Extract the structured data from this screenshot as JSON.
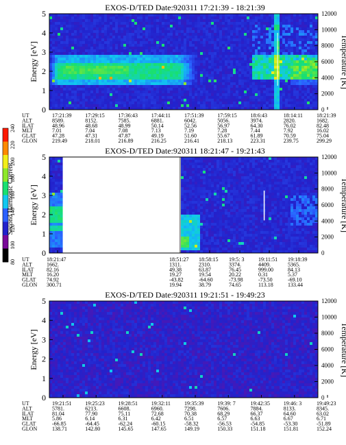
{
  "panels": [
    {
      "title": "EXOS-D/TED   Date:920311  17:21:39 - 18:21:39",
      "ylabel": "Energy [eV]",
      "y2label": "Temperature [K]",
      "yticks": [
        "0",
        "1",
        "2",
        "3",
        "4",
        "5"
      ],
      "y2ticks": [
        "0",
        "2000",
        "4000",
        "6000",
        "8000",
        "10000",
        "12000"
      ],
      "row_labels": [
        "UT",
        "ALT",
        "ILAT",
        "MLT",
        "GLAT",
        "GLON"
      ],
      "columns": [
        [
          "17:21:39",
          "8589.",
          "48.96",
          "7.01",
          "47.28",
          "219.49"
        ],
        [
          "17:29:15",
          "8152.",
          "48.68",
          "7.04",
          "47.31",
          "218.01"
        ],
        [
          "17:36:43",
          "7585.",
          "48.99",
          "7.08",
          "47.87",
          "216.89"
        ],
        [
          "17:44:11",
          "6881.",
          "50.14",
          "7.13",
          "49.19",
          "216.25"
        ],
        [
          "17:51:39",
          "6042.",
          "52.56",
          "7.19",
          "51.60",
          "216.41"
        ],
        [
          "17:59:15",
          "5056.",
          "56.97",
          "7.28",
          "55.67",
          "218.13"
        ],
        [
          "18:6:43",
          "3974.",
          "64.30",
          "7.44",
          "61.89",
          "223.31"
        ],
        [
          "18:14:11",
          "2820.",
          "76.02",
          "7.92",
          "70.59",
          "239.75"
        ],
        [
          "18:21:39",
          "1682.",
          "82.48",
          "16.02",
          "75.04",
          "299.29"
        ]
      ]
    },
    {
      "title": "EXOS-D/TED   Date:920311  18:21:47 - 19:21:43",
      "ylabel": "Energy [eV]",
      "y2label": "Temperature [K]",
      "yticks": [
        "0",
        "1",
        "2",
        "3",
        "4",
        "5"
      ],
      "y2ticks": [
        "0",
        "2000",
        "4000",
        "6000",
        "8000",
        "10000",
        "12000"
      ],
      "row_labels": [
        "UT",
        "ALT",
        "ILAT",
        "MLT",
        "GLAT",
        "GLON"
      ],
      "columns": [
        [
          "18:21:47",
          "1662.",
          "82.16",
          "16.20",
          "74.92",
          "300.71"
        ],
        [
          "18:51:27",
          "1311.",
          "49.38",
          "19.27",
          "-43.82",
          "19.94"
        ],
        [
          "18:58:15",
          "2310.",
          "63.87",
          "19.54",
          "-64.60",
          "38.79"
        ],
        [
          "19:5: 3",
          "3374.",
          "76.45",
          "20.22",
          "-73.98",
          "74.65"
        ],
        [
          "19:11:51",
          "4409.",
          "999.00",
          "0.31",
          "-73.50",
          "113.18"
        ],
        [
          "19:18:39",
          "5365.",
          "84.13",
          "5.37",
          "-69.10",
          "133.44"
        ]
      ]
    },
    {
      "title": "EXOS-D/TED   Date:920311  19:21:51 - 19:49:23",
      "ylabel": "Energy [eV]",
      "y2label": "Temperature [K]",
      "yticks": [
        "0",
        "1",
        "2",
        "3",
        "4",
        "5"
      ],
      "y2ticks": [
        "0",
        "2000",
        "4000",
        "6000",
        "8000",
        "10000",
        "12000"
      ],
      "row_labels": [
        "UT",
        "ALT",
        "ILAT",
        "MLT",
        "GLAT",
        "GLON"
      ],
      "columns": [
        [
          "19:21:51",
          "5781.",
          "81.04",
          "5.86",
          "-66.85",
          "138.71"
        ],
        [
          "19:25:23",
          "6213.",
          "77.90",
          "6.14",
          "-64.45",
          "142.80"
        ],
        [
          "19:28:51",
          "6608.",
          "75.11",
          "6.31",
          "-62.24",
          "145.65"
        ],
        [
          "19:32:11",
          "6960.",
          "72.68",
          "6.42",
          "-60.15",
          "147.65"
        ],
        [
          "19:35:39",
          "7298.",
          "70.38",
          "6.51",
          "-58.32",
          "149.19"
        ],
        [
          "19:39: 7",
          "7606.",
          "68.29",
          "6.57",
          "-56.53",
          "150.33"
        ],
        [
          "19:42:35",
          "7884.",
          "66.37",
          "6.63",
          "-54.85",
          "151.18"
        ],
        [
          "19:46: 3",
          "8133.",
          "64.60",
          "6.67",
          "-53.30",
          "151.81"
        ],
        [
          "19:49:23",
          "8345.",
          "63.02",
          "6.71",
          "-51.89",
          "152.24"
        ]
      ]
    }
  ],
  "colorbar": {
    "label": "Second Harmonic Current",
    "ticks": [
      "80",
      "100",
      "120",
      "140",
      "160",
      "180",
      "200",
      "220",
      "240"
    ],
    "colors": [
      "#000000",
      "#7a0a9a",
      "#2222cc",
      "#2a60ff",
      "#10c8f0",
      "#18e070",
      "#8ee82a",
      "#f2ee18",
      "#ff8a00",
      "#ff1a00"
    ]
  },
  "chart_data": [
    {
      "type": "heatmap",
      "title": "EXOS-D/TED   Date:920311  17:21:39 - 18:21:39",
      "xlabel": "UT",
      "ylabel": "Energy [eV]",
      "y2label": "Temperature [K]",
      "x_ticks": [
        "17:21:39",
        "17:29:15",
        "17:36:43",
        "17:44:11",
        "17:51:39",
        "17:59:15",
        "18:6:43",
        "18:14:11",
        "18:21:39"
      ],
      "ylim": [
        0,
        5
      ],
      "y2lim": [
        0,
        12000
      ],
      "color_range": [
        80,
        240
      ],
      "features": "background ~115; elevated band (~140-170) between 1.2 and 2.9 eV from 17:21 to ~17:55; enhanced intermittent structure after ~18:06 with peaks near 2-2.5 eV"
    },
    {
      "type": "heatmap",
      "title": "EXOS-D/TED   Date:920311  18:21:47 - 19:21:43",
      "xlabel": "UT",
      "ylabel": "Energy [eV]",
      "y2label": "Temperature [K]",
      "x_ticks": [
        "18:21:47",
        "18:51:27",
        "18:58:15",
        "19:5: 3",
        "19:11:51",
        "19:18:39"
      ],
      "ylim": [
        0,
        5
      ],
      "y2lim": [
        0,
        12000
      ],
      "color_range": [
        80,
        240
      ],
      "data_gap": [
        "18:22:30",
        "18:51:27"
      ],
      "features": "background ~115; enhancement (~150-170) near 1-2 eV at start of each data segment"
    },
    {
      "type": "heatmap",
      "title": "EXOS-D/TED   Date:920311  19:21:51 - 19:49:23",
      "xlabel": "UT",
      "ylabel": "Energy [eV]",
      "y2label": "Temperature [K]",
      "x_ticks": [
        "19:21:51",
        "19:25:23",
        "19:28:51",
        "19:32:11",
        "19:35:39",
        "19:39: 7",
        "19:42:35",
        "19:46: 3",
        "19:49:23"
      ],
      "ylim": [
        0,
        5
      ],
      "y2lim": [
        0,
        12000
      ],
      "color_range": [
        80,
        240
      ],
      "features": "nearly uniform background ~110-120 across all energies"
    }
  ]
}
